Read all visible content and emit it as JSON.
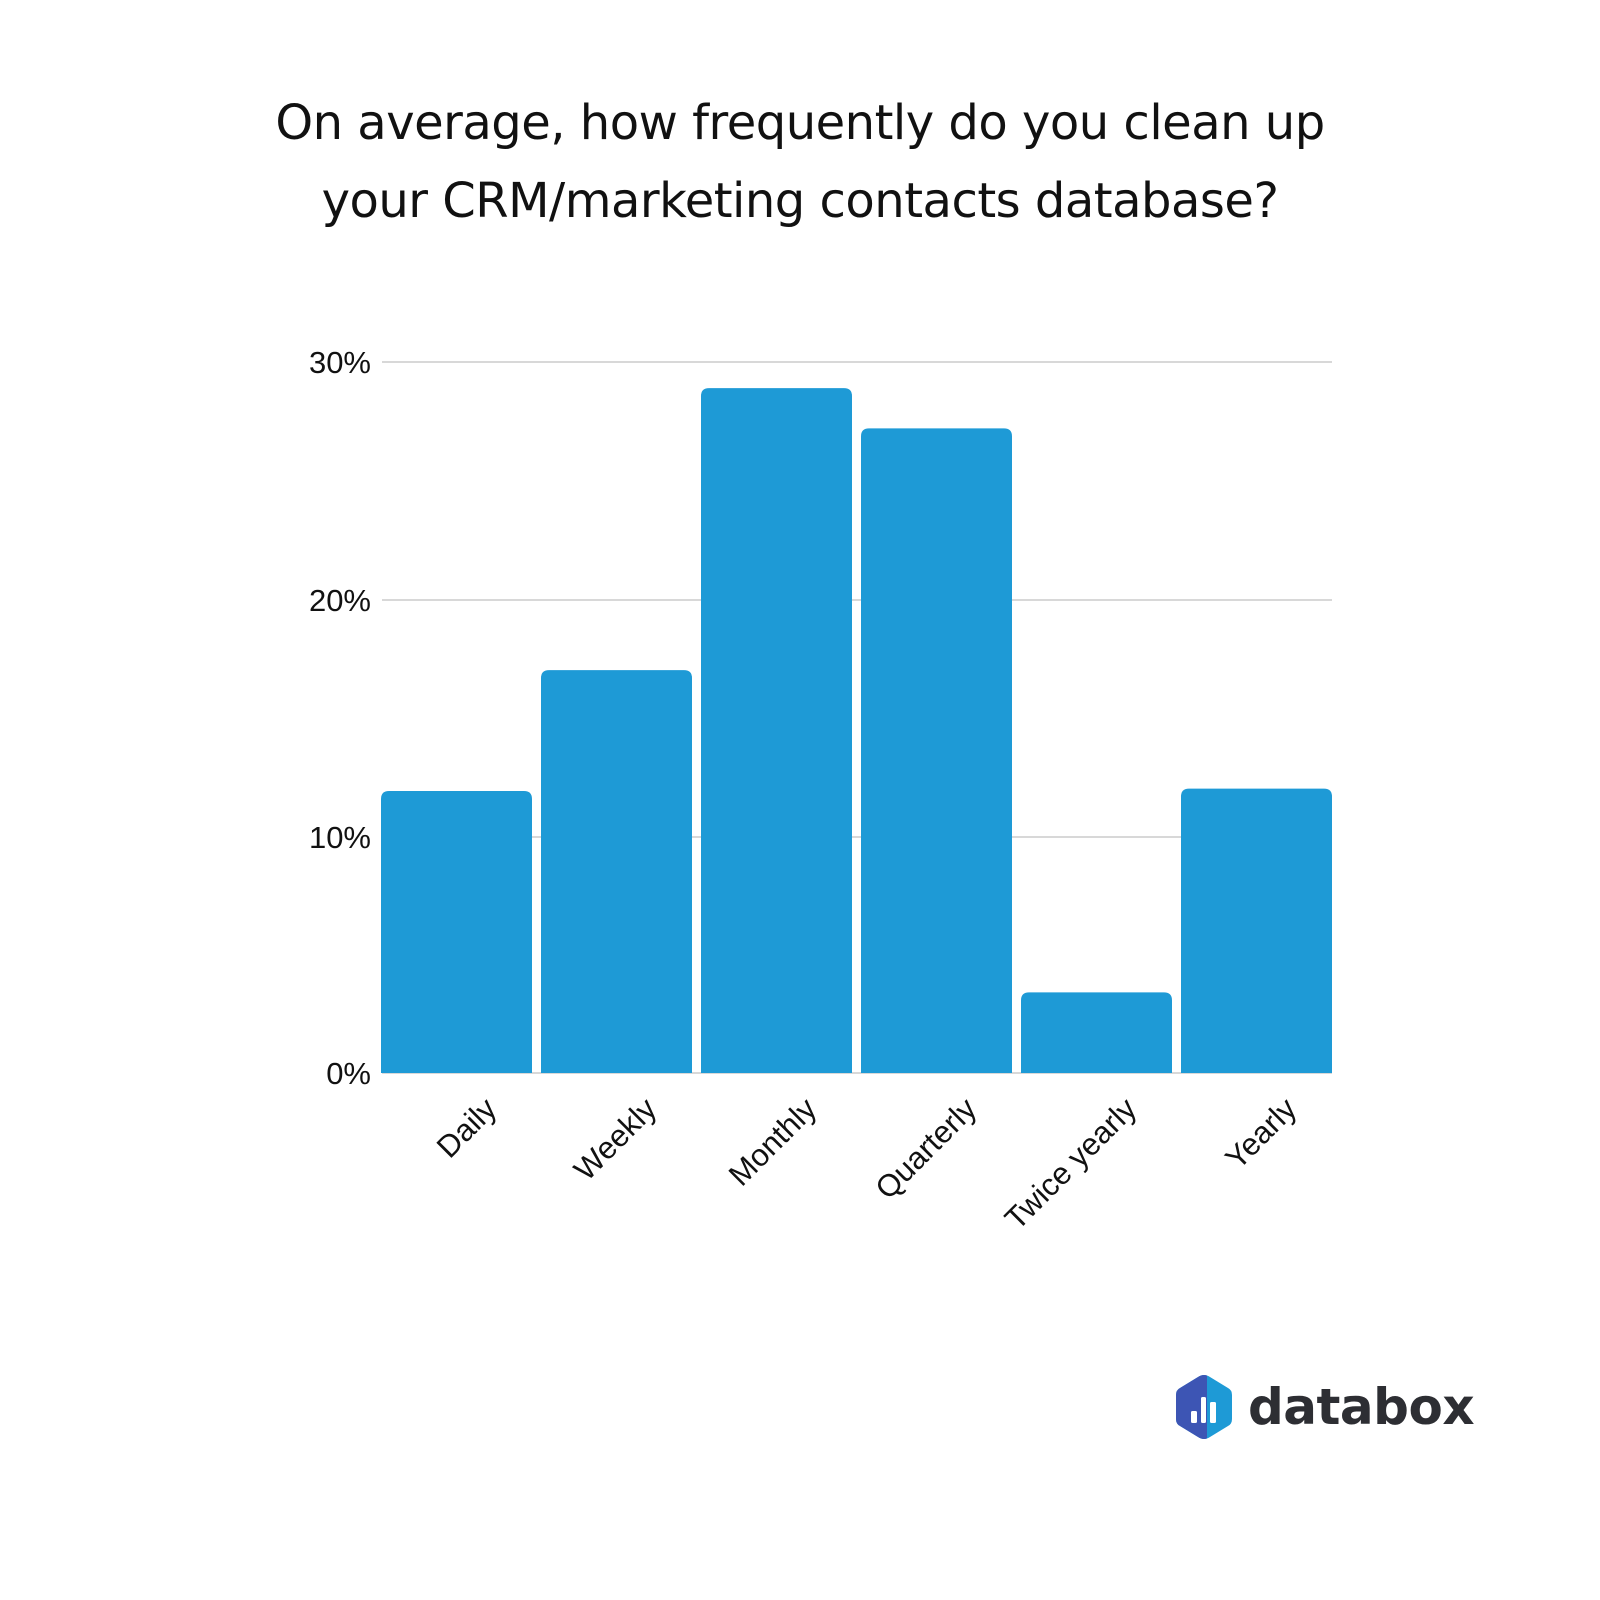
{
  "title": {
    "line1": "On average, how frequently do you clean up",
    "line2": "your CRM/marketing contacts database?"
  },
  "colors": {
    "bar": "#1e9ad6",
    "grid": "#cccccc",
    "text": "#111111",
    "logo_left": "#3d55b4",
    "logo_right": "#1e9ad6",
    "logo_text": "#2d2e33"
  },
  "logo": {
    "icon": "databox-hexagon-icon",
    "text": "databox"
  },
  "chart_data": {
    "type": "bar",
    "title": "On average, how frequently do you clean up your CRM/marketing contacts database?",
    "categories": [
      "Daily",
      "Weekly",
      "Monthly",
      "Quarterly",
      "Twice yearly",
      "Yearly"
    ],
    "values": [
      11.9,
      17.0,
      28.9,
      27.2,
      3.4,
      12.0
    ],
    "unit": "%",
    "xlabel": "",
    "ylabel": "",
    "ylim": [
      0,
      30
    ],
    "yticks": [
      "0%",
      "10%",
      "20%",
      "30%"
    ],
    "grid": true,
    "legend": null,
    "x_tick_rotation": -45
  }
}
